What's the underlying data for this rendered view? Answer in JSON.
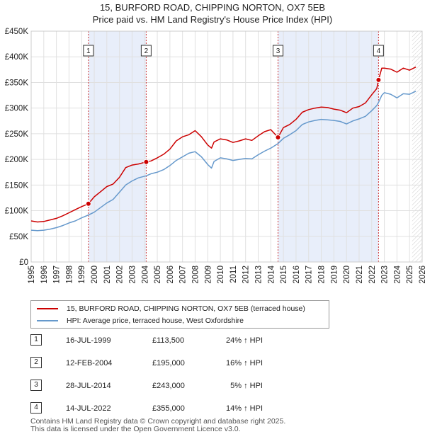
{
  "header": {
    "title_line1": "15, BURFORD ROAD, CHIPPING NORTON, OX7 5EB",
    "title_line2": "Price paid vs. HM Land Registry's House Price Index (HPI)"
  },
  "colors": {
    "property": "#cc0000",
    "hpi": "#6699cc",
    "shade": "#e8eefa",
    "grid": "#e0e0e0",
    "marker_line": "#cc3333",
    "hatch": "#cccccc"
  },
  "legend": {
    "property_label": "15, BURFORD ROAD, CHIPPING NORTON, OX7 5EB (terraced house)",
    "hpi_label": "HPI: Average price, terraced house, West Oxfordshire"
  },
  "sales": [
    {
      "num": "1",
      "date": "16-JUL-1999",
      "price": "£113,500",
      "hpi": "24% ↑ HPI"
    },
    {
      "num": "2",
      "date": "12-FEB-2004",
      "price": "£195,000",
      "hpi": "16% ↑ HPI"
    },
    {
      "num": "3",
      "date": "28-JUL-2014",
      "price": "£243,000",
      "hpi": "5% ↑ HPI"
    },
    {
      "num": "4",
      "date": "14-JUL-2022",
      "price": "£355,000",
      "hpi": "14% ↑ HPI"
    }
  ],
  "footer": {
    "line1": "Contains HM Land Registry data © Crown copyright and database right 2025.",
    "line2": "This data is licensed under the Open Government Licence v3.0."
  },
  "chart_data": {
    "type": "line",
    "title": "15, BURFORD ROAD, CHIPPING NORTON, OX7 5EB",
    "subtitle": "Price paid vs. HM Land Registry's House Price Index (HPI)",
    "xlabel": "",
    "ylabel": "",
    "xlim": [
      1995,
      2026
    ],
    "ylim": [
      0,
      450000
    ],
    "x_ticks": [
      1995,
      1996,
      1997,
      1998,
      1999,
      2000,
      2001,
      2002,
      2003,
      2004,
      2005,
      2006,
      2007,
      2008,
      2009,
      2010,
      2011,
      2012,
      2013,
      2014,
      2015,
      2016,
      2017,
      2018,
      2019,
      2020,
      2021,
      2022,
      2023,
      2024,
      2025,
      2026
    ],
    "y_ticks": [
      {
        "value": 0,
        "label": "£0"
      },
      {
        "value": 50000,
        "label": "£50K"
      },
      {
        "value": 100000,
        "label": "£100K"
      },
      {
        "value": 150000,
        "label": "£150K"
      },
      {
        "value": 200000,
        "label": "£200K"
      },
      {
        "value": 250000,
        "label": "£250K"
      },
      {
        "value": 300000,
        "label": "£300K"
      },
      {
        "value": 350000,
        "label": "£350K"
      },
      {
        "value": 400000,
        "label": "£400K"
      },
      {
        "value": 450000,
        "label": "£450K"
      }
    ],
    "grid": true,
    "shaded_periods": [
      [
        1999.54,
        2004.12
      ],
      [
        2014.57,
        2022.54
      ]
    ],
    "future_from": 2025.2,
    "sale_markers": [
      {
        "label": "1",
        "x": 1999.54,
        "y": 113500
      },
      {
        "label": "2",
        "x": 2004.12,
        "y": 195000
      },
      {
        "label": "3",
        "x": 2014.57,
        "y": 243000
      },
      {
        "label": "4",
        "x": 2022.54,
        "y": 355000
      }
    ],
    "series": [
      {
        "name": "15, BURFORD ROAD, CHIPPING NORTON, OX7 5EB (terraced house)",
        "color": "#cc0000",
        "x": [
          1995.0,
          1995.5,
          1996.0,
          1996.5,
          1997.0,
          1997.5,
          1998.0,
          1998.5,
          1999.0,
          1999.54,
          2000.0,
          2000.5,
          2001.0,
          2001.5,
          2002.0,
          2002.5,
          2003.0,
          2003.5,
          2004.12,
          2004.5,
          2005.0,
          2005.5,
          2006.0,
          2006.5,
          2007.0,
          2007.5,
          2008.0,
          2008.5,
          2009.0,
          2009.3,
          2009.5,
          2010.0,
          2010.5,
          2011.0,
          2011.5,
          2012.0,
          2012.5,
          2013.0,
          2013.5,
          2014.0,
          2014.57,
          2015.0,
          2015.5,
          2016.0,
          2016.5,
          2017.0,
          2017.5,
          2018.0,
          2018.5,
          2019.0,
          2019.5,
          2020.0,
          2020.5,
          2021.0,
          2021.5,
          2022.0,
          2022.4,
          2022.54,
          2022.8,
          2023.0,
          2023.5,
          2024.0,
          2024.5,
          2025.0,
          2025.5
        ],
        "values": [
          80000,
          78000,
          79000,
          82000,
          85000,
          90000,
          96000,
          102000,
          108000,
          113500,
          127000,
          137000,
          147000,
          152000,
          165000,
          184000,
          189000,
          191000,
          195000,
          197000,
          203000,
          210000,
          220000,
          236000,
          244000,
          248000,
          256000,
          244000,
          228000,
          222000,
          234000,
          240000,
          238000,
          233000,
          236000,
          240000,
          237000,
          246000,
          254000,
          258000,
          243000,
          262000,
          268000,
          278000,
          292000,
          297000,
          300000,
          302000,
          301000,
          298000,
          296000,
          291000,
          300000,
          303000,
          310000,
          326000,
          338000,
          355000,
          378000,
          378000,
          376000,
          370000,
          378000,
          374000,
          380000
        ]
      },
      {
        "name": "HPI: Average price, terraced house, West Oxfordshire",
        "color": "#6699cc",
        "x": [
          1995.0,
          1995.5,
          1996.0,
          1996.5,
          1997.0,
          1997.5,
          1998.0,
          1998.5,
          1999.0,
          1999.54,
          2000.0,
          2000.5,
          2001.0,
          2001.5,
          2002.0,
          2002.5,
          2003.0,
          2003.5,
          2004.12,
          2004.5,
          2005.0,
          2005.5,
          2006.0,
          2006.5,
          2007.0,
          2007.5,
          2008.0,
          2008.5,
          2009.0,
          2009.3,
          2009.5,
          2010.0,
          2010.5,
          2011.0,
          2011.5,
          2012.0,
          2012.5,
          2013.0,
          2013.5,
          2014.0,
          2014.57,
          2015.0,
          2015.5,
          2016.0,
          2016.5,
          2017.0,
          2017.5,
          2018.0,
          2018.5,
          2019.0,
          2019.5,
          2020.0,
          2020.5,
          2021.0,
          2021.5,
          2022.0,
          2022.4,
          2022.54,
          2022.8,
          2023.0,
          2023.5,
          2024.0,
          2024.5,
          2025.0,
          2025.5
        ],
        "values": [
          62000,
          61000,
          62000,
          64000,
          67000,
          71000,
          76000,
          80000,
          86000,
          91500,
          97000,
          106000,
          115000,
          122000,
          136000,
          150000,
          158000,
          164000,
          168000,
          172000,
          175000,
          180000,
          188000,
          198000,
          205000,
          212000,
          215000,
          205000,
          190000,
          183000,
          196000,
          203000,
          201000,
          198000,
          200000,
          202000,
          201000,
          209000,
          216000,
          222000,
          231000,
          241000,
          248000,
          256000,
          268000,
          273000,
          276000,
          278000,
          277000,
          276000,
          274000,
          269000,
          275000,
          279000,
          284000,
          295000,
          305000,
          311000,
          325000,
          330000,
          327000,
          320000,
          328000,
          327000,
          333000
        ]
      }
    ]
  }
}
